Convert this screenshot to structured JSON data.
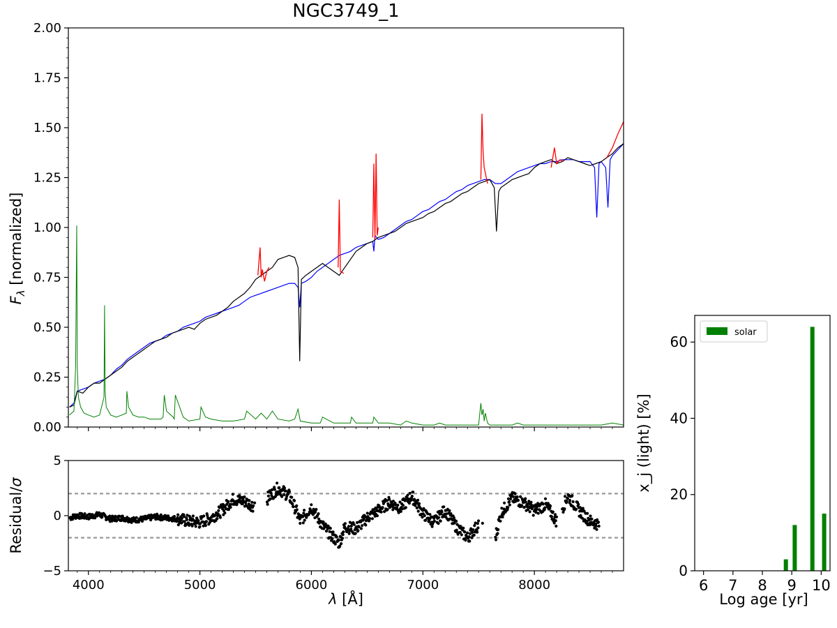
{
  "chart_data": [
    {
      "type": "line",
      "title": "NGC3749_1",
      "ylabel_symbol": "F",
      "ylabel_subscript": "λ",
      "ylabel_rest": " [normalized]",
      "xlim": [
        3820,
        8800
      ],
      "ylim": [
        0,
        2.0
      ],
      "xticks": [
        "4000",
        "5000",
        "6000",
        "7000",
        "8000"
      ],
      "xtick_values": [
        4000,
        5000,
        6000,
        7000,
        8000
      ],
      "yticks": [
        "0.00",
        "0.25",
        "0.50",
        "0.75",
        "1.00",
        "1.25",
        "1.50",
        "1.75",
        "2.00"
      ],
      "ytick_values": [
        0,
        0.25,
        0.5,
        0.75,
        1.0,
        1.25,
        1.5,
        1.75,
        2.0
      ],
      "colors": {
        "observed": "#000000",
        "masked": "#ff0000",
        "model": "#0000ff",
        "error": "#008000"
      },
      "series": [
        {
          "key": "observed",
          "x": [
            3830,
            3870,
            3900,
            3950,
            4000,
            4050,
            4100,
            4150,
            4200,
            4250,
            4300,
            4350,
            4400,
            4450,
            4500,
            4550,
            4600,
            4650,
            4700,
            4750,
            4800,
            4850,
            4900,
            4950,
            5000,
            5050,
            5100,
            5150,
            5200,
            5250,
            5300,
            5350,
            5400,
            5450,
            5500,
            5550,
            5600,
            5650,
            5700,
            5750,
            5800,
            5850,
            5880,
            5895,
            5910,
            5950,
            6000,
            6050,
            6100,
            6150,
            6200,
            6250,
            6300,
            6350,
            6400,
            6450,
            6500,
            6550,
            6600,
            6650,
            6700,
            6750,
            6800,
            6850,
            6900,
            6950,
            7000,
            7050,
            7100,
            7150,
            7200,
            7250,
            7300,
            7350,
            7400,
            7450,
            7500,
            7550,
            7600,
            7640,
            7660,
            7680,
            7700,
            7750,
            7800,
            7850,
            7900,
            7950,
            8000,
            8050,
            8100,
            8150,
            8200,
            8250,
            8300,
            8350,
            8400,
            8450,
            8500,
            8550,
            8600,
            8650,
            8700,
            8750,
            8800
          ],
          "y": [
            0.1,
            0.11,
            0.18,
            0.17,
            0.2,
            0.22,
            0.22,
            0.24,
            0.26,
            0.28,
            0.3,
            0.33,
            0.35,
            0.37,
            0.39,
            0.41,
            0.43,
            0.44,
            0.45,
            0.47,
            0.48,
            0.49,
            0.5,
            0.49,
            0.52,
            0.54,
            0.55,
            0.56,
            0.58,
            0.6,
            0.63,
            0.65,
            0.67,
            0.7,
            0.74,
            0.76,
            0.78,
            0.8,
            0.84,
            0.85,
            0.86,
            0.85,
            0.8,
            0.33,
            0.74,
            0.76,
            0.78,
            0.8,
            0.82,
            0.8,
            0.78,
            0.76,
            0.8,
            0.84,
            0.88,
            0.9,
            0.92,
            0.93,
            0.95,
            0.96,
            0.97,
            0.98,
            1.0,
            1.02,
            1.03,
            1.04,
            1.05,
            1.07,
            1.08,
            1.1,
            1.12,
            1.13,
            1.15,
            1.17,
            1.18,
            1.2,
            1.22,
            1.23,
            1.24,
            1.2,
            0.98,
            1.18,
            1.2,
            1.22,
            1.24,
            1.25,
            1.26,
            1.27,
            1.3,
            1.32,
            1.33,
            1.34,
            1.32,
            1.33,
            1.35,
            1.34,
            1.33,
            1.32,
            1.31,
            1.32,
            1.33,
            1.35,
            1.37,
            1.4,
            1.42
          ]
        },
        {
          "key": "masked",
          "x": [
            5520,
            5540,
            5550,
            5560,
            5580,
            5600,
            5620
          ],
          "y": [
            0.76,
            0.9,
            0.75,
            0.79,
            0.73,
            0.78,
            0.8
          ],
          "extra_x": [
            6240,
            6250,
            6260,
            6290
          ],
          "extra_y": [
            0.8,
            1.14,
            0.78,
            0.77
          ],
          "extra2_x": [
            6550,
            6560,
            6570,
            6580,
            6590,
            6600
          ],
          "extra2_y": [
            0.95,
            1.32,
            0.94,
            1.37,
            0.96,
            1.0
          ],
          "extra3_x": [
            7520,
            7530,
            7540,
            7550,
            7580
          ],
          "extra3_y": [
            1.24,
            1.57,
            1.38,
            1.3,
            1.22
          ],
          "extra4_x": [
            8150,
            8180,
            8200,
            8230,
            8260
          ],
          "extra4_y": [
            1.3,
            1.4,
            1.32,
            1.34,
            1.33
          ],
          "extra5_x": [
            8650,
            8700,
            8750,
            8800
          ],
          "extra5_y": [
            1.35,
            1.4,
            1.47,
            1.53
          ]
        },
        {
          "key": "model",
          "x": [
            3830,
            3870,
            3900,
            3950,
            4000,
            4050,
            4100,
            4150,
            4200,
            4250,
            4300,
            4350,
            4400,
            4450,
            4500,
            4550,
            4600,
            4650,
            4700,
            4750,
            4800,
            4850,
            4900,
            4950,
            5000,
            5050,
            5100,
            5150,
            5200,
            5250,
            5300,
            5350,
            5400,
            5450,
            5500,
            5550,
            5600,
            5650,
            5700,
            5750,
            5800,
            5850,
            5880,
            5895,
            5910,
            5950,
            6000,
            6050,
            6100,
            6150,
            6200,
            6250,
            6300,
            6350,
            6400,
            6450,
            6500,
            6550,
            6560,
            6570,
            6600,
            6650,
            6700,
            6750,
            6800,
            6850,
            6900,
            6950,
            7000,
            7050,
            7100,
            7150,
            7200,
            7250,
            7300,
            7350,
            7400,
            7450,
            7500,
            7550,
            7600,
            7650,
            7700,
            7750,
            7800,
            7850,
            7900,
            7950,
            8000,
            8050,
            8100,
            8150,
            8200,
            8250,
            8300,
            8350,
            8400,
            8450,
            8500,
            8540,
            8560,
            8580,
            8600,
            8640,
            8660,
            8680,
            8700,
            8750,
            8800
          ],
          "y": [
            0.1,
            0.12,
            0.18,
            0.19,
            0.2,
            0.22,
            0.23,
            0.24,
            0.26,
            0.29,
            0.31,
            0.34,
            0.36,
            0.38,
            0.4,
            0.42,
            0.43,
            0.44,
            0.46,
            0.47,
            0.48,
            0.5,
            0.51,
            0.52,
            0.53,
            0.55,
            0.56,
            0.57,
            0.58,
            0.59,
            0.6,
            0.61,
            0.63,
            0.65,
            0.66,
            0.67,
            0.68,
            0.69,
            0.7,
            0.71,
            0.72,
            0.72,
            0.7,
            0.6,
            0.72,
            0.73,
            0.75,
            0.78,
            0.8,
            0.82,
            0.84,
            0.86,
            0.87,
            0.88,
            0.9,
            0.91,
            0.92,
            0.93,
            0.88,
            0.96,
            0.94,
            0.95,
            0.97,
            0.99,
            1.01,
            1.03,
            1.04,
            1.06,
            1.08,
            1.09,
            1.11,
            1.13,
            1.14,
            1.16,
            1.18,
            1.19,
            1.21,
            1.22,
            1.23,
            1.24,
            1.24,
            1.22,
            1.22,
            1.24,
            1.26,
            1.28,
            1.29,
            1.3,
            1.31,
            1.32,
            1.32,
            1.33,
            1.33,
            1.34,
            1.34,
            1.34,
            1.33,
            1.33,
            1.33,
            1.3,
            1.05,
            1.32,
            1.33,
            1.3,
            1.1,
            1.34,
            1.36,
            1.39,
            1.42
          ]
        },
        {
          "key": "error",
          "x": [
            3830,
            3870,
            3885,
            3895,
            3900,
            3910,
            3930,
            3960,
            4000,
            4050,
            4100,
            4140,
            4145,
            4150,
            4160,
            4200,
            4250,
            4300,
            4340,
            4345,
            4360,
            4400,
            4450,
            4500,
            4550,
            4600,
            4650,
            4670,
            4680,
            4700,
            4760,
            4770,
            4780,
            4850,
            4900,
            5000,
            5010,
            5050,
            5100,
            5200,
            5300,
            5400,
            5420,
            5500,
            5550,
            5600,
            5650,
            5700,
            5800,
            5850,
            5880,
            5900,
            6000,
            6080,
            6100,
            6200,
            6300,
            6350,
            6360,
            6400,
            6500,
            6550,
            6560,
            6600,
            6700,
            6800,
            6850,
            6900,
            7000,
            7100,
            7150,
            7200,
            7300,
            7400,
            7500,
            7520,
            7530,
            7540,
            7550,
            7560,
            7580,
            7600,
            7700,
            7800,
            7850,
            7900,
            8000,
            8100,
            8200,
            8300,
            8400,
            8500,
            8600,
            8700,
            8800
          ],
          "y": [
            0.06,
            0.08,
            0.3,
            1.01,
            0.3,
            0.15,
            0.1,
            0.07,
            0.06,
            0.05,
            0.06,
            0.15,
            0.61,
            0.18,
            0.1,
            0.06,
            0.05,
            0.06,
            0.07,
            0.18,
            0.1,
            0.06,
            0.05,
            0.05,
            0.04,
            0.04,
            0.04,
            0.05,
            0.16,
            0.08,
            0.05,
            0.04,
            0.16,
            0.05,
            0.03,
            0.04,
            0.1,
            0.05,
            0.04,
            0.03,
            0.03,
            0.04,
            0.08,
            0.04,
            0.07,
            0.04,
            0.08,
            0.04,
            0.03,
            0.04,
            0.09,
            0.03,
            0.02,
            0.02,
            0.05,
            0.02,
            0.02,
            0.02,
            0.05,
            0.02,
            0.02,
            0.02,
            0.05,
            0.02,
            0.02,
            0.01,
            0.03,
            0.02,
            0.01,
            0.01,
            0.02,
            0.01,
            0.01,
            0.01,
            0.01,
            0.12,
            0.06,
            0.09,
            0.03,
            0.07,
            0.02,
            0.01,
            0.01,
            0.01,
            0.02,
            0.01,
            0.01,
            0.01,
            0.01,
            0.01,
            0.01,
            0.01,
            0.01,
            0.02,
            0.01
          ]
        }
      ]
    },
    {
      "type": "scatter",
      "ylabel_text": "Residual/",
      "ylabel_symbol": "σ",
      "xlabel_symbol": "λ",
      "xlabel_rest": " [Å]",
      "xlim": [
        3820,
        8800
      ],
      "ylim": [
        -5,
        5
      ],
      "xticks": [
        "4000",
        "5000",
        "6000",
        "7000",
        "8000"
      ],
      "xtick_values": [
        4000,
        5000,
        6000,
        7000,
        8000
      ],
      "yticks": [
        "−5",
        "0",
        "5"
      ],
      "ytick_values": [
        -5,
        0,
        5
      ],
      "reference_lines": [
        2,
        -2
      ],
      "residual_trend": {
        "x": [
          3830,
          3900,
          4000,
          4100,
          4200,
          4300,
          4400,
          4500,
          4600,
          4700,
          4800,
          4900,
          5000,
          5100,
          5200,
          5300,
          5400,
          5500,
          5600,
          5700,
          5800,
          5850,
          5900,
          6000,
          6100,
          6200,
          6250,
          6300,
          6400,
          6500,
          6600,
          6700,
          6800,
          6900,
          7000,
          7100,
          7200,
          7300,
          7400,
          7500,
          7650,
          7700,
          7800,
          7900,
          8000,
          8100,
          8200,
          8300,
          8400,
          8500,
          8580
        ],
        "y": [
          -0.2,
          0.0,
          -0.1,
          0.1,
          -0.3,
          -0.2,
          -0.4,
          -0.3,
          -0.1,
          -0.2,
          -0.3,
          -0.5,
          -0.6,
          -0.2,
          0.5,
          1.5,
          1.3,
          0.8,
          1.5,
          2.5,
          1.8,
          0.8,
          -0.5,
          0.8,
          -0.9,
          -2.0,
          -2.5,
          -1.0,
          -1.2,
          -0.2,
          0.5,
          1.2,
          0.7,
          1.8,
          0.2,
          -0.6,
          0.5,
          -1.0,
          -2.0,
          -0.8,
          -2.0,
          0.2,
          1.6,
          1.2,
          0.5,
          1.0,
          -0.5,
          1.8,
          0.5,
          -0.5,
          -0.8
        ]
      }
    },
    {
      "type": "bar",
      "ylabel": "x_j (light) [%]",
      "xlabel": "Log age [yr]",
      "legend": "solar",
      "legend_position": "top-left",
      "color": "#008000",
      "xlim": [
        5.7,
        10.3
      ],
      "ylim": [
        0,
        67
      ],
      "xticks": [
        "6",
        "7",
        "8",
        "9",
        "10"
      ],
      "xtick_values": [
        6,
        7,
        8,
        9,
        10
      ],
      "yticks": [
        "0",
        "20",
        "40",
        "60"
      ],
      "ytick_values": [
        0,
        20,
        40,
        60
      ],
      "x": [
        8.8,
        9.1,
        9.7,
        10.1
      ],
      "values": [
        3,
        12,
        64,
        15
      ]
    }
  ]
}
